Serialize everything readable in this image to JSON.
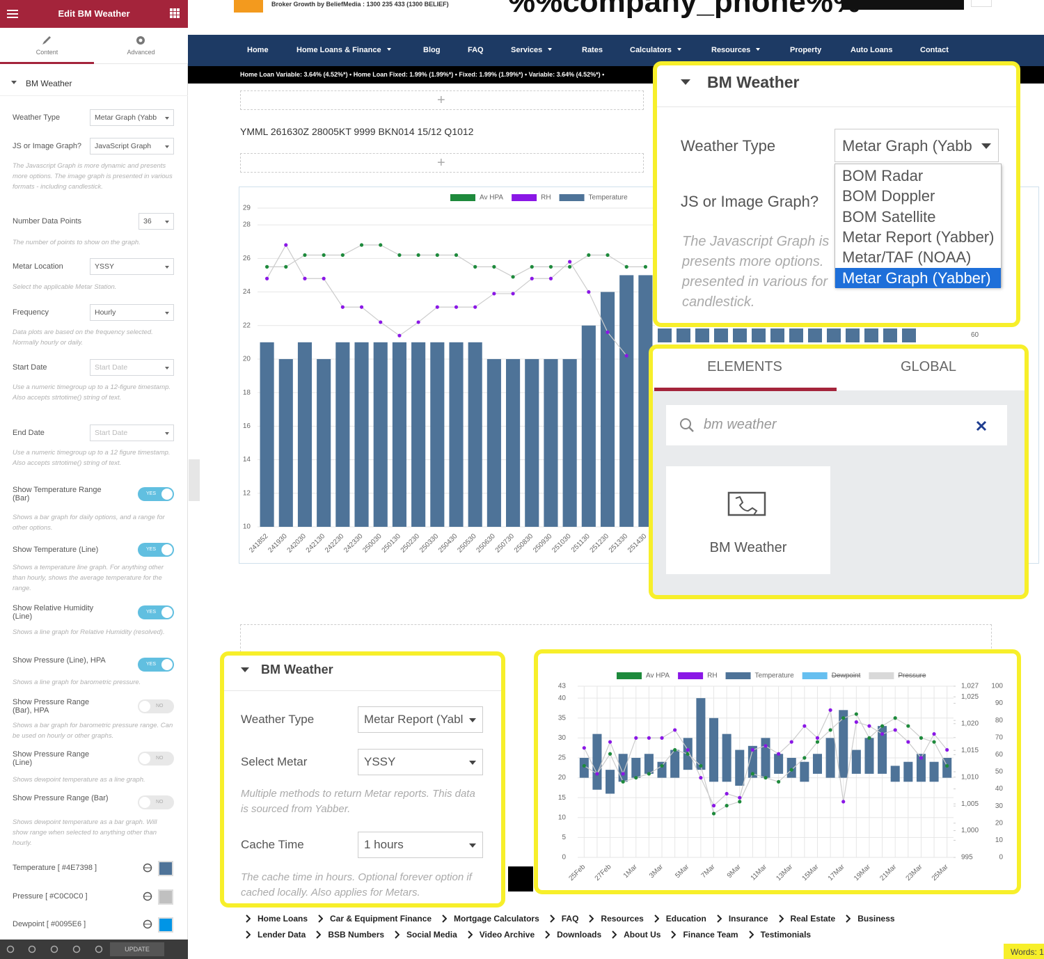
{
  "sidebar": {
    "header_title": "Edit BM Weather",
    "tabs": [
      "Content",
      "Advanced"
    ],
    "section": "BM Weather",
    "fields": [
      {
        "label": "Weather Type",
        "type": "select",
        "value": "Metar Graph (Yabb"
      },
      {
        "label": "JS or Image Graph?",
        "type": "select",
        "value": "JavaScript Graph",
        "description": "The Javascript Graph is more dynamic and presents more options. The image graph is presented in various formats - including candlestick."
      },
      {
        "label": "Number Data Points",
        "type": "number",
        "value": "36",
        "description": "The number of points to show on the graph."
      },
      {
        "label": "Metar Location",
        "type": "select",
        "value": "YSSY",
        "description": "Select the applicable Metar Station."
      },
      {
        "label": "Frequency",
        "type": "select",
        "value": "Hourly",
        "description": "Data plots are based on the frequency selected. Normally hourly or daily."
      },
      {
        "label": "Start Date",
        "type": "date",
        "placeholder": "Start Date",
        "description": "Use a numeric timegroup up to a 12-figure timestamp. Also accepts strtotime() string of text."
      },
      {
        "label": "End Date",
        "type": "date",
        "placeholder": "Start Date",
        "description": "Use a numeric timegroup up to a 12 figure timestamp. Also accepts strtotime() string of text."
      },
      {
        "label": "Show Temperature Range (Bar)",
        "type": "toggle",
        "on": true,
        "toggle_label": "YES",
        "description": "Shows a bar graph for daily options, and a range for other options."
      },
      {
        "label": "Show Temperature (Line)",
        "type": "toggle",
        "on": true,
        "toggle_label": "YES",
        "description": "Shows a temperature line graph. For anything other than hourly, shows the average temperature for the range."
      },
      {
        "label": "Show Relative Humidity (Line)",
        "type": "toggle",
        "on": true,
        "toggle_label": "YES",
        "description": "Shows a line graph for Relative Humidity (resolved)."
      },
      {
        "label": "Show Pressure (Line), HPA",
        "type": "toggle",
        "on": true,
        "toggle_label": "YES",
        "description": "Shows a line graph for barometric pressure."
      },
      {
        "label": "Show Pressure Range (Bar), HPA",
        "type": "toggle",
        "on": false,
        "toggle_label": "NO",
        "description": "Shows a bar graph for barometric pressure range. Can be used on hourly or other graphs."
      },
      {
        "label": "Show Pressure Range (Line)",
        "type": "toggle",
        "on": false,
        "toggle_label": "NO",
        "description": "Shows dewpoint temperature as a line graph."
      },
      {
        "label": "Show Pressure Range (Bar)",
        "type": "toggle",
        "on": false,
        "toggle_label": "NO",
        "description": "Shows dewpoint temperature as a bar graph. Will show range when selected to anything other than hourly."
      },
      {
        "label": "Temperature [ #4E7398 ]",
        "type": "color",
        "color": "#4E7398"
      },
      {
        "label": "Pressure [ #C0C0C0 ]",
        "type": "color",
        "color": "#C0C0C0"
      },
      {
        "label": "Dewpoint [ #0095E6 ]",
        "type": "color",
        "color": "#0095E6"
      }
    ],
    "update_button": "UPDATE"
  },
  "site": {
    "tagline": "Broker Growth by BeliefMedia : 1300 235 433 (1300 BELIEF)",
    "phone_placeholder": "%%company_phone%%",
    "nav": [
      {
        "label": "Home",
        "dropdown": false
      },
      {
        "label": "Home Loans & Finance",
        "dropdown": true
      },
      {
        "label": "Blog",
        "dropdown": false
      },
      {
        "label": "FAQ",
        "dropdown": false
      },
      {
        "label": "Services",
        "dropdown": true
      },
      {
        "label": "Rates",
        "dropdown": false
      },
      {
        "label": "Calculators",
        "dropdown": true
      },
      {
        "label": "Resources",
        "dropdown": true
      },
      {
        "label": "Property",
        "dropdown": false
      },
      {
        "label": "Auto Loans",
        "dropdown": false
      },
      {
        "label": "Contact",
        "dropdown": false
      }
    ],
    "ticker": "Home Loan Variable: 3.64% (4.52%*) • Home Loan Fixed: 1.99% (1.99%*) • Fixed: 1.99% (1.99%*) • Variable: 3.64% (4.52%*) •",
    "metar_text": "YMML 261630Z 28005KT 9999 BKN014 15/12 Q1012",
    "right_axis_fragment": "60",
    "footer_rows": [
      [
        "Home Loans",
        "Car & Equipment Finance",
        "Mortgage Calculators",
        "FAQ",
        "Resources",
        "Education",
        "Insurance",
        "Real Estate",
        "Business"
      ],
      [
        "Lender Data",
        "BSB Numbers",
        "Social Media",
        "Video Archive",
        "Downloads",
        "About Us",
        "Finance Team",
        "Testimonials"
      ]
    ],
    "word_count": "Words: 1"
  },
  "main_chart": {
    "type": "bar",
    "categories": [
      "241852",
      "241930",
      "242030",
      "242130",
      "242230",
      "242330",
      "250030",
      "250130",
      "250230",
      "250330",
      "250430",
      "250530",
      "250630",
      "250730",
      "250830",
      "250930",
      "251030",
      "251130",
      "251230",
      "251330",
      "251430"
    ],
    "series": [
      {
        "name": "Av HPA",
        "color": "#1e8a3c",
        "type": "line",
        "values": [
          25.5,
          25.5,
          26.2,
          26.2,
          26.2,
          26.8,
          26.8,
          26.2,
          26.2,
          26.2,
          26.2,
          25.5,
          25.5,
          24.9,
          25.5,
          25.5,
          25.5,
          26.2,
          26.2,
          25.5,
          25.5
        ]
      },
      {
        "name": "RH",
        "color": "#8a17e6",
        "type": "line",
        "values": [
          24.8,
          26.8,
          24.8,
          24.8,
          23.1,
          23.1,
          22.2,
          21.4,
          22.2,
          23.1,
          23.1,
          23.1,
          23.9,
          23.9,
          24.8,
          24.8,
          25.8,
          24.0,
          21.6,
          20.2,
          null
        ]
      },
      {
        "name": "Temperature",
        "color": "#4e7398",
        "type": "bar",
        "values": [
          21,
          20,
          21,
          20,
          21,
          21,
          21,
          21,
          21,
          21,
          21,
          21,
          20,
          20,
          20,
          20,
          20,
          22,
          24,
          25,
          25
        ]
      }
    ],
    "ylim": [
      10,
      29
    ],
    "yticks": [
      10,
      12,
      14,
      16,
      18,
      20,
      22,
      24,
      26,
      28,
      29
    ],
    "grid": true
  },
  "callout_weather_type": {
    "title": "BM Weather",
    "weather_type_label": "Weather Type",
    "weather_type_value": "Metar Graph (Yabb",
    "options": [
      "BOM Radar",
      "BOM Doppler",
      "BOM Satellite",
      "Metar Report (Yabber)",
      "Metar/TAF (NOAA)",
      "Metar Graph (Yabber)"
    ],
    "selected_option": 5,
    "graph_label": "JS or Image Graph?",
    "description_lines": [
      "The Javascript Graph is",
      "presents more options.",
      "presented in various for",
      "candlestick."
    ]
  },
  "callout_elements": {
    "tabs": [
      "ELEMENTS",
      "GLOBAL"
    ],
    "search_text": "bm weather",
    "widget_label": "BM Weather"
  },
  "callout_metar": {
    "title": "BM Weather",
    "fields": [
      {
        "label": "Weather Type",
        "value": "Metar Report (Yabl"
      },
      {
        "label": "Select Metar",
        "value": "YSSY",
        "description": "Multiple methods to return Metar reports. This data is sourced from Yabber."
      },
      {
        "label": "Cache Time",
        "value": "1 hours",
        "description": "The cache time in hours. Optional forever option if cached locally. Also applies for Metars."
      }
    ]
  },
  "callout_chart": {
    "type": "bar",
    "categories": [
      "25Feb",
      null,
      "27Feb",
      null,
      "1Mar",
      null,
      "3Mar",
      null,
      "5Mar",
      null,
      "7Mar",
      null,
      "9Mar",
      null,
      "11Mar",
      null,
      "13Mar",
      null,
      "15Mar",
      null,
      "17Mar",
      null,
      "19Mar",
      null,
      "21Mar",
      null,
      "23Mar",
      null,
      "25Mar"
    ],
    "series": [
      {
        "name": "Av HPA",
        "color": "#1e8a3c",
        "type": "line",
        "values": [
          23,
          21,
          26,
          19,
          20,
          21,
          23,
          27,
          26,
          23,
          11,
          13,
          14,
          21,
          20,
          19,
          22,
          25,
          29,
          32,
          35,
          36,
          30,
          33,
          35,
          33,
          30,
          29,
          23
        ]
      },
      {
        "name": "RH",
        "color": "#8a17e6",
        "type": "line",
        "values": [
          27.5,
          21,
          29,
          21,
          30,
          30,
          30,
          32,
          27,
          20,
          13,
          16,
          15,
          27,
          28,
          26,
          29,
          33,
          30,
          37,
          14,
          34,
          33,
          31,
          32,
          29,
          25,
          31,
          27
        ]
      },
      {
        "name": "Temperature",
        "color": "#4e7398",
        "type": "bar",
        "low": [
          20,
          17,
          16,
          19,
          20,
          21,
          20,
          20,
          22,
          22,
          19,
          19,
          18,
          20,
          20,
          21,
          20,
          19,
          21,
          20,
          20,
          21,
          21,
          21,
          19,
          19,
          19,
          19,
          20
        ],
        "values": [
          25,
          31,
          22,
          26,
          25,
          26,
          24,
          27,
          30,
          40,
          35,
          31,
          27,
          28,
          30,
          26,
          25,
          24,
          26,
          30,
          37,
          27,
          30,
          33,
          23,
          24,
          26,
          24,
          25
        ]
      },
      {
        "name": "Dewpoint",
        "color": "#0095e6",
        "type": "line",
        "hidden": true
      },
      {
        "name": "Pressure",
        "color": "#c0c0c0",
        "type": "line",
        "hidden": true
      }
    ],
    "ylim": [
      0,
      43
    ],
    "yticks": [
      0,
      5,
      10,
      15,
      20,
      25,
      30,
      35,
      40,
      43
    ],
    "y2lim": [
      995,
      1027
    ],
    "y2ticks": [
      995,
      {
        "value": 1000,
        "label": "1,000"
      },
      {
        "value": 1005,
        "label": "1,005"
      },
      {
        "value": 1010,
        "label": "1,010"
      },
      {
        "value": 1015,
        "label": "1,015"
      },
      {
        "value": 1020,
        "label": "1,020"
      },
      {
        "value": 1025,
        "label": "1,025"
      },
      {
        "value": 1027,
        "label": "1,027"
      }
    ],
    "y3lim": [
      0,
      100
    ],
    "y3ticks": [
      0,
      10,
      20,
      30,
      40,
      50,
      60,
      70,
      80,
      90,
      100
    ],
    "grid": true,
    "vertical_grid": true
  }
}
